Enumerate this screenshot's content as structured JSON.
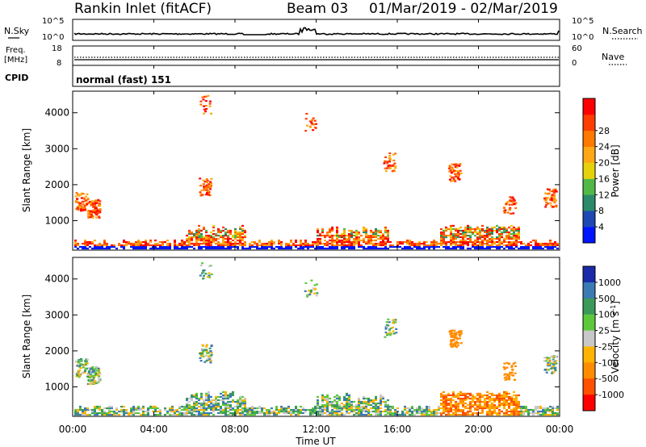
{
  "header": {
    "title": "Rankin Inlet (fitACF)",
    "beam": "Beam 03",
    "dates": "01/Mar/2019 - 02/Mar/2019"
  },
  "chart_data": [
    {
      "name": "noise",
      "type": "line",
      "left_label": "N.Sky",
      "right_label": "N.Search",
      "left_ticks": [
        "10^5",
        "10^0"
      ],
      "right_ticks": [
        "10^5",
        "10^0"
      ]
    },
    {
      "name": "frequency",
      "type": "line",
      "left_label_1": "Freq.",
      "left_label_2": "[MHz]",
      "right_label": "Nave",
      "left_ticks": [
        "18",
        "8"
      ],
      "right_ticks": [
        "60",
        "0"
      ]
    },
    {
      "name": "cpid",
      "type": "table",
      "label": "CPID",
      "text": "normal (fast) 151"
    },
    {
      "name": "power",
      "type": "heatmap",
      "ylabel": "Slant Range [km]",
      "yticks": [
        1000,
        2000,
        3000,
        4000
      ],
      "ylim": [
        180,
        4600
      ],
      "colorbar_label": "Power [dB]",
      "colorbar_ticks": [
        "4",
        "8",
        "12",
        "16",
        "20",
        "24",
        "28"
      ],
      "colorbar_colors": [
        "#0014ff",
        "#1f48b4",
        "#2a8a6a",
        "#52b848",
        "#e6d20a",
        "#ffa814",
        "#ff7800",
        "#ff3c00",
        "#ff0000"
      ]
    },
    {
      "name": "velocity",
      "type": "heatmap",
      "ylabel": "Slant Range [km]",
      "yticks": [
        1000,
        2000,
        3000,
        4000
      ],
      "ylim": [
        180,
        4600
      ],
      "colorbar_label": "Velocity [m s",
      "colorbar_label_sup": "-1",
      "colorbar_ticks": [
        "1000",
        "500",
        "100",
        "25",
        "-25",
        "-100",
        "-500",
        "-1000"
      ],
      "colorbar_colors": [
        "#1a2aa8",
        "#3c7ab4",
        "#3a9a5a",
        "#5ec83c",
        "#c8c8c8",
        "#ffb400",
        "#ff8c00",
        "#ff5000",
        "#ff0000"
      ]
    }
  ],
  "xaxis": {
    "label": "Time UT",
    "ticks": [
      "00:00",
      "04:00",
      "08:00",
      "12:00",
      "16:00",
      "20:00",
      "00:00"
    ]
  }
}
